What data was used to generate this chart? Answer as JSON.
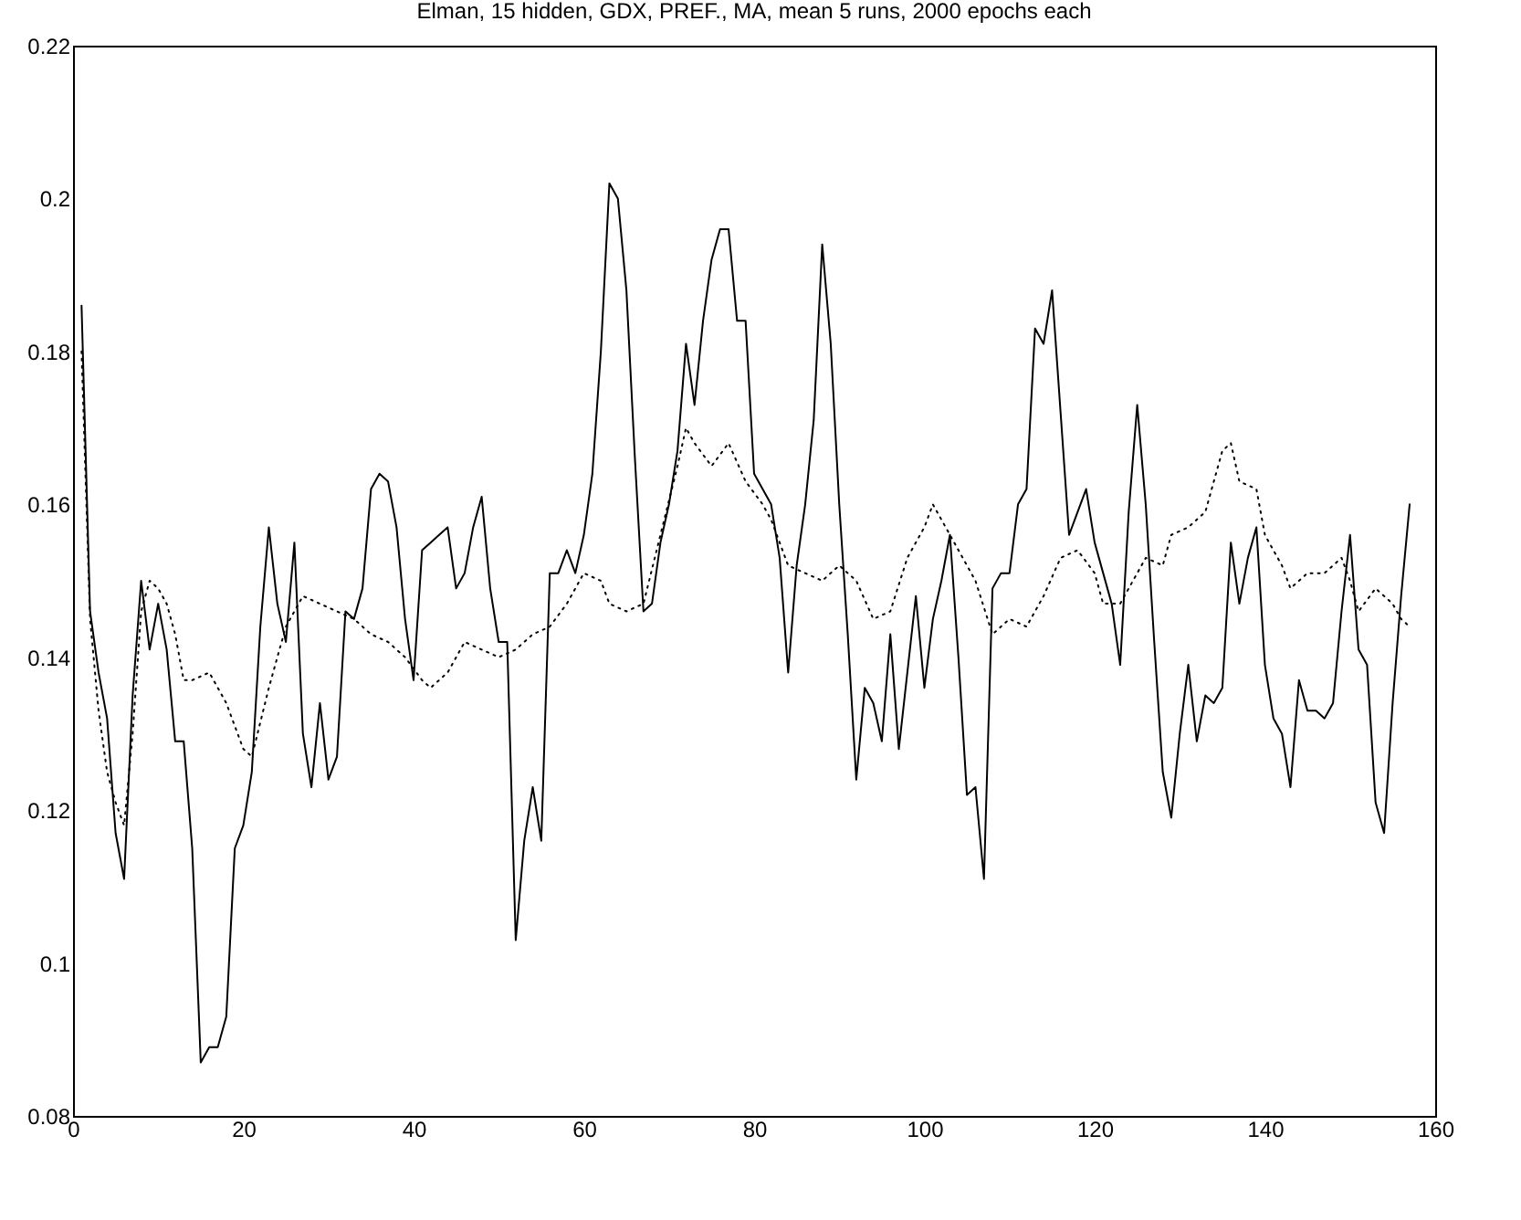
{
  "chart_data": {
    "type": "line",
    "title": "Elman, 15 hidden, GDX, PREF., MA, mean 5 runs, 2000 epochs each",
    "xlim": [
      0,
      160
    ],
    "xticks": [
      0,
      20,
      40,
      60,
      80,
      100,
      120,
      140,
      160
    ],
    "ylim": [
      0.08,
      0.22
    ],
    "yticks": [
      0.08,
      0.1,
      0.12,
      0.14,
      0.16,
      0.18,
      0.2,
      0.22
    ],
    "grid": false,
    "series": [
      {
        "color": "#000000",
        "line_style": "solid",
        "x": [
          1,
          2,
          3,
          4,
          5,
          6,
          7,
          8,
          9,
          10,
          11,
          12,
          13,
          14,
          15,
          16,
          17,
          18,
          19,
          20,
          21,
          22,
          23,
          24,
          25,
          26,
          27,
          28,
          29,
          30,
          31,
          32,
          33,
          34,
          35,
          36,
          37,
          38,
          39,
          40,
          41,
          42,
          43,
          44,
          45,
          46,
          47,
          48,
          49,
          50,
          51,
          52,
          53,
          54,
          55,
          56,
          57,
          58,
          59,
          60,
          61,
          62,
          63,
          64,
          65,
          66,
          67,
          68,
          69,
          70,
          71,
          72,
          73,
          74,
          75,
          76,
          77,
          78,
          79,
          80,
          81,
          82,
          83,
          84,
          85,
          86,
          87,
          88,
          89,
          90,
          91,
          92,
          93,
          94,
          95,
          96,
          97,
          98,
          99,
          100,
          101,
          102,
          103,
          104,
          105,
          106,
          107,
          108,
          109,
          110,
          111,
          112,
          113,
          114,
          115,
          116,
          117,
          118,
          119,
          120,
          121,
          122,
          123,
          124,
          125,
          126,
          127,
          128,
          129,
          130,
          131,
          132,
          133,
          134,
          135,
          136,
          137,
          138,
          139,
          140,
          141,
          142,
          143,
          144,
          145,
          146,
          147,
          148,
          149,
          150,
          151,
          152,
          153,
          154,
          155,
          156,
          157
        ],
        "values": [
          0.186,
          0.146,
          0.138,
          0.132,
          0.117,
          0.111,
          0.135,
          0.15,
          0.141,
          0.147,
          0.141,
          0.129,
          0.129,
          0.115,
          0.087,
          0.089,
          0.089,
          0.093,
          0.115,
          0.118,
          0.125,
          0.144,
          0.157,
          0.147,
          0.142,
          0.155,
          0.13,
          0.123,
          0.134,
          0.124,
          0.127,
          0.146,
          0.145,
          0.149,
          0.162,
          0.164,
          0.163,
          0.157,
          0.145,
          0.137,
          0.154,
          0.155,
          0.156,
          0.157,
          0.149,
          0.151,
          0.157,
          0.161,
          0.149,
          0.142,
          0.142,
          0.103,
          0.116,
          0.123,
          0.116,
          0.151,
          0.151,
          0.154,
          0.151,
          0.156,
          0.164,
          0.18,
          0.202,
          0.2,
          0.188,
          0.166,
          0.146,
          0.147,
          0.155,
          0.16,
          0.167,
          0.181,
          0.173,
          0.184,
          0.192,
          0.196,
          0.196,
          0.184,
          0.184,
          0.164,
          0.162,
          0.16,
          0.153,
          0.138,
          0.152,
          0.16,
          0.171,
          0.194,
          0.181,
          0.16,
          0.143,
          0.124,
          0.136,
          0.134,
          0.129,
          0.143,
          0.128,
          0.138,
          0.148,
          0.136,
          0.145,
          0.15,
          0.156,
          0.14,
          0.122,
          0.123,
          0.111,
          0.149,
          0.151,
          0.151,
          0.16,
          0.162,
          0.183,
          0.181,
          0.188,
          0.172,
          0.156,
          0.159,
          0.162,
          0.155,
          0.151,
          0.147,
          0.139,
          0.159,
          0.173,
          0.16,
          0.142,
          0.125,
          0.119,
          0.13,
          0.139,
          0.129,
          0.135,
          0.134,
          0.136,
          0.155,
          0.147,
          0.153,
          0.157,
          0.139,
          0.132,
          0.13,
          0.123,
          0.137,
          0.133,
          0.133,
          0.132,
          0.134,
          0.146,
          0.156,
          0.141,
          0.139,
          0.121,
          0.117,
          0.134,
          0.148,
          0.16
        ]
      },
      {
        "color": "#000000",
        "line_style": "dotted",
        "x": [
          1,
          2,
          3,
          4,
          5,
          6,
          7,
          8,
          9,
          10,
          11,
          12,
          13,
          14,
          16,
          18,
          20,
          21,
          23,
          25,
          27,
          29,
          31,
          33,
          35,
          37,
          39,
          41,
          42,
          44,
          46,
          48,
          50,
          52,
          54,
          56,
          58,
          60,
          62,
          63,
          65,
          67,
          69,
          71,
          72,
          73,
          75,
          77,
          79,
          81,
          82,
          84,
          86,
          88,
          90,
          92,
          94,
          96,
          98,
          100,
          101,
          103,
          105,
          106,
          108,
          110,
          112,
          114,
          116,
          118,
          120,
          121,
          123,
          124,
          126,
          128,
          129,
          131,
          133,
          135,
          136,
          137,
          139,
          140,
          142,
          143,
          145,
          147,
          149,
          150,
          151,
          153,
          155,
          156,
          157
        ],
        "values": [
          0.18,
          0.145,
          0.133,
          0.125,
          0.121,
          0.118,
          0.13,
          0.146,
          0.15,
          0.149,
          0.147,
          0.143,
          0.137,
          0.137,
          0.138,
          0.134,
          0.128,
          0.127,
          0.136,
          0.144,
          0.148,
          0.147,
          0.146,
          0.145,
          0.143,
          0.142,
          0.14,
          0.137,
          0.136,
          0.138,
          0.142,
          0.141,
          0.14,
          0.141,
          0.143,
          0.144,
          0.147,
          0.151,
          0.15,
          0.147,
          0.146,
          0.147,
          0.156,
          0.165,
          0.17,
          0.168,
          0.165,
          0.168,
          0.163,
          0.16,
          0.158,
          0.152,
          0.151,
          0.15,
          0.152,
          0.15,
          0.145,
          0.146,
          0.153,
          0.157,
          0.16,
          0.156,
          0.152,
          0.15,
          0.143,
          0.145,
          0.144,
          0.148,
          0.153,
          0.154,
          0.151,
          0.147,
          0.147,
          0.149,
          0.153,
          0.152,
          0.156,
          0.157,
          0.159,
          0.167,
          0.168,
          0.163,
          0.162,
          0.156,
          0.152,
          0.149,
          0.151,
          0.151,
          0.153,
          0.15,
          0.146,
          0.149,
          0.147,
          0.145,
          0.144
        ]
      }
    ]
  }
}
